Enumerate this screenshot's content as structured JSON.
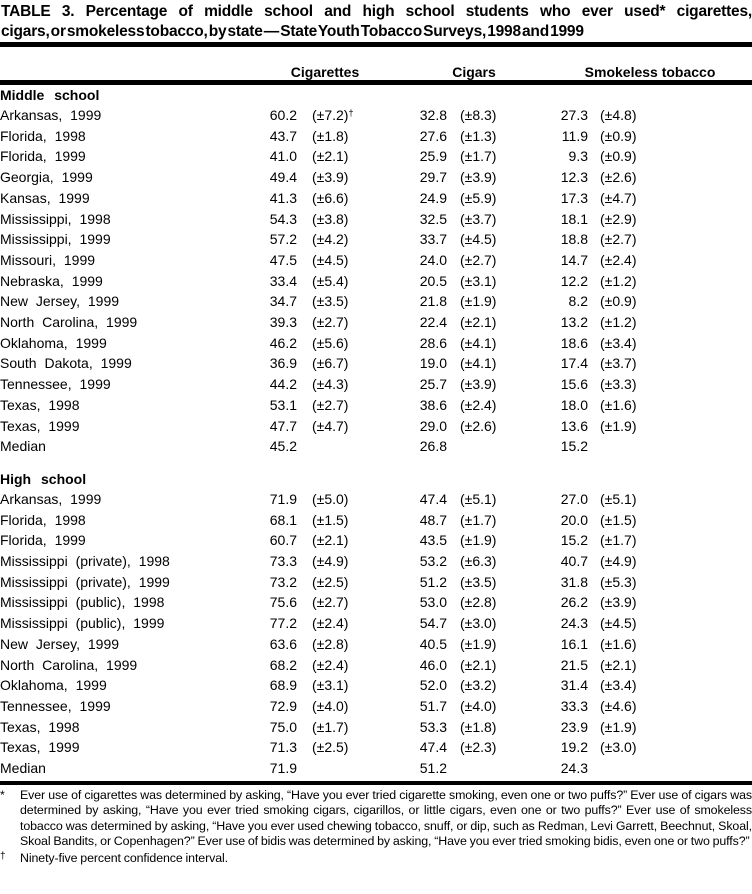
{
  "title": {
    "line1": "TABLE 3. Percentage of middle school and high school students who ever used* cigarettes,",
    "line2": "cigars, or smokeless tobacco, by state — State Youth Tobacco Surveys, 1998 and 1999"
  },
  "table": {
    "column_headers": [
      "Cigarettes",
      "Cigars",
      "Smokeless tobacco"
    ],
    "sections": [
      {
        "label": "Middle school",
        "rows": [
          {
            "state": "Arkansas, 1999",
            "cigarettes": "60.2",
            "cigarettes_ci": "(±7.2)",
            "cigarettes_ci_note": "†",
            "cigars": "32.8",
            "cigars_ci": "(±8.3)",
            "smokeless": "27.3",
            "smokeless_ci": "(±4.8)"
          },
          {
            "state": "Florida, 1998",
            "cigarettes": "43.7",
            "cigarettes_ci": "(±1.8)",
            "cigars": "27.6",
            "cigars_ci": "(±1.3)",
            "smokeless": "11.9",
            "smokeless_ci": "(±0.9)"
          },
          {
            "state": "Florida, 1999",
            "cigarettes": "41.0",
            "cigarettes_ci": "(±2.1)",
            "cigars": "25.9",
            "cigars_ci": "(±1.7)",
            "smokeless": "9.3",
            "smokeless_ci": "(±0.9)"
          },
          {
            "state": "Georgia, 1999",
            "cigarettes": "49.4",
            "cigarettes_ci": "(±3.9)",
            "cigars": "29.7",
            "cigars_ci": "(±3.9)",
            "smokeless": "12.3",
            "smokeless_ci": "(±2.6)"
          },
          {
            "state": "Kansas, 1999",
            "cigarettes": "41.3",
            "cigarettes_ci": "(±6.6)",
            "cigars": "24.9",
            "cigars_ci": "(±5.9)",
            "smokeless": "17.3",
            "smokeless_ci": "(±4.7)"
          },
          {
            "state": "Mississippi, 1998",
            "cigarettes": "54.3",
            "cigarettes_ci": "(±3.8)",
            "cigars": "32.5",
            "cigars_ci": "(±3.7)",
            "smokeless": "18.1",
            "smokeless_ci": "(±2.9)"
          },
          {
            "state": "Mississippi, 1999",
            "cigarettes": "57.2",
            "cigarettes_ci": "(±4.2)",
            "cigars": "33.7",
            "cigars_ci": "(±4.5)",
            "smokeless": "18.8",
            "smokeless_ci": "(±2.7)"
          },
          {
            "state": "Missouri, 1999",
            "cigarettes": "47.5",
            "cigarettes_ci": "(±4.5)",
            "cigars": "24.0",
            "cigars_ci": "(±2.7)",
            "smokeless": "14.7",
            "smokeless_ci": "(±2.4)"
          },
          {
            "state": "Nebraska, 1999",
            "cigarettes": "33.4",
            "cigarettes_ci": "(±5.4)",
            "cigars": "20.5",
            "cigars_ci": "(±3.1)",
            "smokeless": "12.2",
            "smokeless_ci": "(±1.2)"
          },
          {
            "state": "New Jersey, 1999",
            "cigarettes": "34.7",
            "cigarettes_ci": "(±3.5)",
            "cigars": "21.8",
            "cigars_ci": "(±1.9)",
            "smokeless": "8.2",
            "smokeless_ci": "(±0.9)"
          },
          {
            "state": "North Carolina, 1999",
            "cigarettes": "39.3",
            "cigarettes_ci": "(±2.7)",
            "cigars": "22.4",
            "cigars_ci": "(±2.1)",
            "smokeless": "13.2",
            "smokeless_ci": "(±1.2)"
          },
          {
            "state": "Oklahoma, 1999",
            "cigarettes": "46.2",
            "cigarettes_ci": "(±5.6)",
            "cigars": "28.6",
            "cigars_ci": "(±4.1)",
            "smokeless": "18.6",
            "smokeless_ci": "(±3.4)"
          },
          {
            "state": "South Dakota, 1999",
            "cigarettes": "36.9",
            "cigarettes_ci": "(±6.7)",
            "cigars": "19.0",
            "cigars_ci": "(±4.1)",
            "smokeless": "17.4",
            "smokeless_ci": "(±3.7)"
          },
          {
            "state": "Tennessee, 1999",
            "cigarettes": "44.2",
            "cigarettes_ci": "(±4.3)",
            "cigars": "25.7",
            "cigars_ci": "(±3.9)",
            "smokeless": "15.6",
            "smokeless_ci": "(±3.3)"
          },
          {
            "state": "Texas, 1998",
            "cigarettes": "53.1",
            "cigarettes_ci": "(±2.7)",
            "cigars": "38.6",
            "cigars_ci": "(±2.4)",
            "smokeless": "18.0",
            "smokeless_ci": "(±1.6)"
          },
          {
            "state": "Texas, 1999",
            "cigarettes": "47.7",
            "cigarettes_ci": "(±4.7)",
            "cigars": "29.0",
            "cigars_ci": "(±2.6)",
            "smokeless": "13.6",
            "smokeless_ci": "(±1.9)"
          },
          {
            "state": "Median",
            "cigarettes": "45.2",
            "cigars": "26.8",
            "smokeless": "15.2"
          }
        ]
      },
      {
        "label": "High school",
        "rows": [
          {
            "state": "Arkansas, 1999",
            "cigarettes": "71.9",
            "cigarettes_ci": "(±5.0)",
            "cigars": "47.4",
            "cigars_ci": "(±5.1)",
            "smokeless": "27.0",
            "smokeless_ci": "(±5.1)"
          },
          {
            "state": "Florida, 1998",
            "cigarettes": "68.1",
            "cigarettes_ci": "(±1.5)",
            "cigars": "48.7",
            "cigars_ci": "(±1.7)",
            "smokeless": "20.0",
            "smokeless_ci": "(±1.5)"
          },
          {
            "state": "Florida, 1999",
            "cigarettes": "60.7",
            "cigarettes_ci": "(±2.1)",
            "cigars": "43.5",
            "cigars_ci": "(±1.9)",
            "smokeless": "15.2",
            "smokeless_ci": "(±1.7)"
          },
          {
            "state": "Mississippi (private), 1998",
            "cigarettes": "73.3",
            "cigarettes_ci": "(±4.9)",
            "cigars": "53.2",
            "cigars_ci": "(±6.3)",
            "smokeless": "40.7",
            "smokeless_ci": "(±4.9)"
          },
          {
            "state": "Mississippi (private), 1999",
            "cigarettes": "73.2",
            "cigarettes_ci": "(±2.5)",
            "cigars": "51.2",
            "cigars_ci": "(±3.5)",
            "smokeless": "31.8",
            "smokeless_ci": "(±5.3)"
          },
          {
            "state": "Mississippi (public), 1998",
            "cigarettes": "75.6",
            "cigarettes_ci": "(±2.7)",
            "cigars": "53.0",
            "cigars_ci": "(±2.8)",
            "smokeless": "26.2",
            "smokeless_ci": "(±3.9)"
          },
          {
            "state": "Mississippi (public), 1999",
            "cigarettes": "77.2",
            "cigarettes_ci": "(±2.4)",
            "cigars": "54.7",
            "cigars_ci": "(±3.0)",
            "smokeless": "24.3",
            "smokeless_ci": "(±4.5)"
          },
          {
            "state": "New Jersey, 1999",
            "cigarettes": "63.6",
            "cigarettes_ci": "(±2.8)",
            "cigars": "40.5",
            "cigars_ci": "(±1.9)",
            "smokeless": "16.1",
            "smokeless_ci": "(±1.6)"
          },
          {
            "state": "North Carolina, 1999",
            "cigarettes": "68.2",
            "cigarettes_ci": "(±2.4)",
            "cigars": "46.0",
            "cigars_ci": "(±2.1)",
            "smokeless": "21.5",
            "smokeless_ci": "(±2.1)"
          },
          {
            "state": "Oklahoma, 1999",
            "cigarettes": "68.9",
            "cigarettes_ci": "(±3.1)",
            "cigars": "52.0",
            "cigars_ci": "(±3.2)",
            "smokeless": "31.4",
            "smokeless_ci": "(±3.4)"
          },
          {
            "state": "Tennessee, 1999",
            "cigarettes": "72.9",
            "cigarettes_ci": "(±4.0)",
            "cigars": "51.7",
            "cigars_ci": "(±4.0)",
            "smokeless": "33.3",
            "smokeless_ci": "(±4.6)"
          },
          {
            "state": "Texas, 1998",
            "cigarettes": "75.0",
            "cigarettes_ci": "(±1.7)",
            "cigars": "53.3",
            "cigars_ci": "(±1.8)",
            "smokeless": "23.9",
            "smokeless_ci": "(±1.9)"
          },
          {
            "state": "Texas, 1999",
            "cigarettes": "71.3",
            "cigarettes_ci": "(±2.5)",
            "cigars": "47.4",
            "cigars_ci": "(±2.3)",
            "smokeless": "19.2",
            "smokeless_ci": "(±3.0)"
          },
          {
            "state": "Median",
            "cigarettes": "71.9",
            "cigars": "51.2",
            "smokeless": "24.3"
          }
        ]
      }
    ]
  },
  "footnotes": [
    {
      "marker": "*",
      "text": "Ever use of cigarettes was determined by asking, “Have you ever tried cigarette smoking, even one or two puffs?” Ever use of cigars was determined by asking, “Have you ever tried smoking cigars, cigarillos, or little cigars, even one or two puffs?” Ever use of smokeless tobacco was determined by asking, “Have you ever used chewing tobacco, snuff, or dip, such as Redman, Levi Garrett, Beechnut, Skoal, Skoal Bandits, or Copenhagen?” Ever use of bidis was determined by asking, “Have you ever tried smoking bidis, even one or two puffs?”"
    },
    {
      "marker": "†",
      "text": "Ninety-five percent confidence interval."
    }
  ]
}
